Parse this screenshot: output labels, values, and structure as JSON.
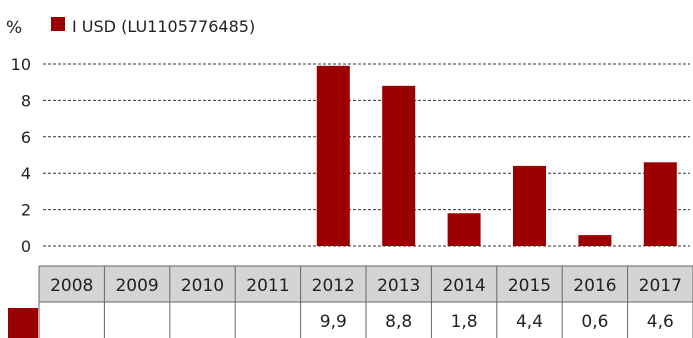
{
  "chart_data": {
    "type": "bar",
    "unit_label": "%",
    "categories": [
      "2008",
      "2009",
      "2010",
      "2011",
      "2012",
      "2013",
      "2014",
      "2015",
      "2016",
      "2017"
    ],
    "series": [
      {
        "name": "I USD (LU1105776485)",
        "values": [
          null,
          null,
          null,
          null,
          9.9,
          8.8,
          1.8,
          4.4,
          0.6,
          4.6
        ],
        "value_labels": [
          "",
          "",
          "",
          "",
          "9,9",
          "8,8",
          "1,8",
          "4,4",
          "0,6",
          "4,6"
        ],
        "color": "#9b0000"
      }
    ],
    "y_ticks": [
      0,
      2,
      4,
      6,
      8,
      10
    ],
    "ylim": [
      0,
      10
    ],
    "grid": true,
    "legend_position": "top-left"
  },
  "colors": {
    "bar": "#9b0000",
    "grid": "#333333",
    "table_header_bg": "#d4d4d4",
    "table_border": "#666666"
  }
}
